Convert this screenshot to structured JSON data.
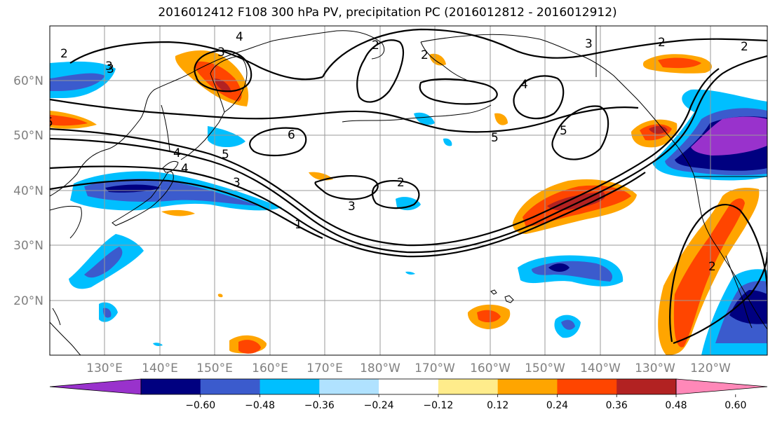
{
  "title": "2016012412 F108 300 hPa PV, precipitation PC (2016012812 - 2016012912)",
  "lat_ticks": [
    "60°N",
    "50°N",
    "40°N",
    "30°N",
    "20°N"
  ],
  "lon_ticks": [
    "130°E",
    "140°E",
    "150°E",
    "160°E",
    "170°E",
    "180°W",
    "170°W",
    "160°W",
    "150°W",
    "140°W",
    "130°W",
    "120°W"
  ],
  "colorbar": {
    "colors": [
      "#9932cc",
      "#000080",
      "#3b5bcd",
      "#00bfff",
      "#b0e2ff",
      "#ffffff",
      "#ffec8b",
      "#ffa500",
      "#ff4500",
      "#b22222",
      "#ff88b8"
    ],
    "labels": [
      "-0.60",
      "-0.48",
      "-0.36",
      "-0.24",
      "-0.12",
      "0.12",
      "0.24",
      "0.36",
      "0.48",
      "0.60"
    ]
  },
  "contour_labels": [
    "2",
    "3",
    "4",
    "2",
    "3",
    "2",
    "4",
    "5",
    "6",
    "5",
    "4",
    "3",
    "1",
    "2",
    "3",
    "4",
    "5",
    "3",
    "2",
    "2",
    "3",
    "5",
    "2"
  ]
}
